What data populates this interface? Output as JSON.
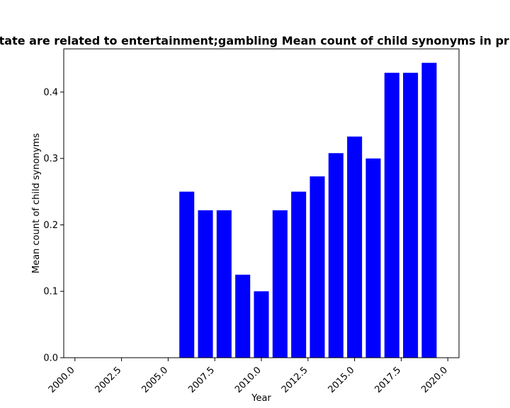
{
  "chart_data": {
    "type": "bar",
    "title": "Apps that state are related to entertainment;gambling Mean count of child synonyms in privacy policy",
    "xlabel": "Year",
    "ylabel": "Mean count of child synonyms",
    "xlim": [
      1999.4,
      2020.6
    ],
    "ylim": [
      0,
      0.465
    ],
    "x_ticks": [
      2000.0,
      2002.5,
      2005.0,
      2007.5,
      2010.0,
      2012.5,
      2015.0,
      2017.5,
      2020.0
    ],
    "x_tick_labels": [
      "2000.0",
      "2002.5",
      "2005.0",
      "2007.5",
      "2010.0",
      "2012.5",
      "2015.0",
      "2017.5",
      "2020.0"
    ],
    "y_ticks": [
      0.0,
      0.1,
      0.2,
      0.3,
      0.4
    ],
    "y_tick_labels": [
      "0.0",
      "0.1",
      "0.2",
      "0.3",
      "0.4"
    ],
    "bar_color": "#0000ff",
    "bar_width": 0.8,
    "grid": false,
    "x": [
      2006,
      2007,
      2008,
      2009,
      2010,
      2011,
      2012,
      2013,
      2014,
      2015,
      2016,
      2017,
      2018,
      2019
    ],
    "values": [
      0.25,
      0.222,
      0.222,
      0.125,
      0.1,
      0.222,
      0.25,
      0.273,
      0.308,
      0.333,
      0.3,
      0.429,
      0.429,
      0.444
    ]
  }
}
